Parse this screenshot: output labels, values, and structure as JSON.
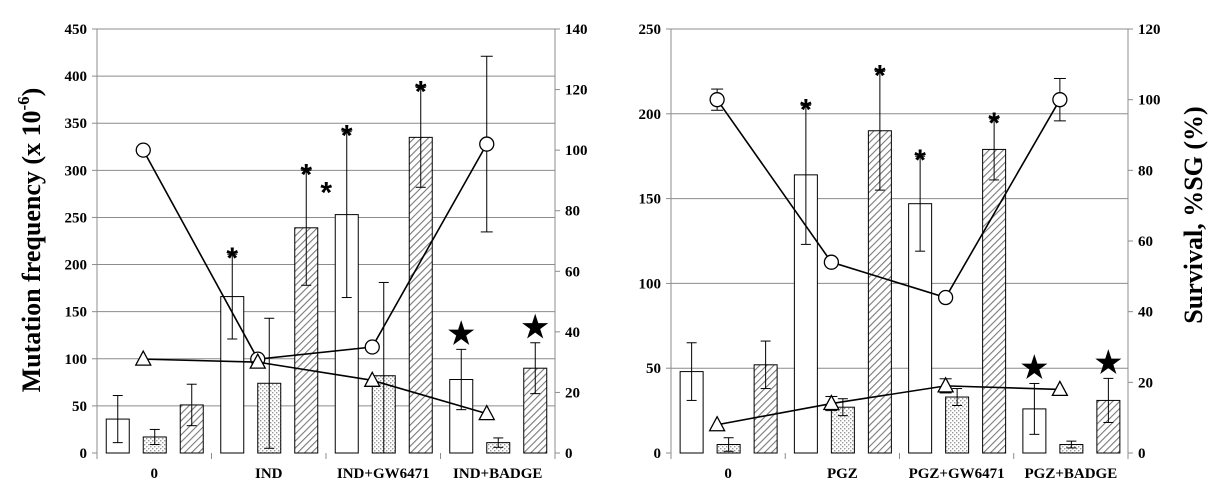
{
  "chart_data": [
    {
      "type": "bar",
      "ylabel": "Mutation frequency  (x 10",
      "ylabel_exp": "-6",
      "ylabel_close": ")",
      "ylim": [
        0,
        450
      ],
      "y_ticks": [
        "0",
        "50",
        "100",
        "150",
        "200",
        "250",
        "300",
        "350",
        "400",
        "450"
      ],
      "y2_ticks": [
        "0",
        "20",
        "40",
        "60",
        "80",
        "100",
        "120",
        "140"
      ],
      "y2lim": [
        0,
        140
      ],
      "categories": [
        "0",
        "IND",
        "IND+GW6471",
        "IND+BADGE"
      ],
      "bar_series": [
        {
          "pattern": "white",
          "values": [
            36,
            166,
            253,
            78
          ],
          "err": [
            25,
            45,
            88,
            32
          ]
        },
        {
          "pattern": "dotted",
          "values": [
            17,
            74,
            82,
            11
          ],
          "err": [
            8,
            69,
            99,
            5
          ]
        },
        {
          "pattern": "hatch",
          "values": [
            51,
            239,
            335,
            90
          ],
          "err": [
            22,
            61,
            53,
            27
          ]
        }
      ],
      "line_series": [
        {
          "marker": "circle",
          "values": [
            100,
            31,
            35,
            102
          ],
          "err": [
            0,
            0,
            0,
            29
          ]
        },
        {
          "marker": "triangle",
          "values": [
            31,
            30,
            24,
            13
          ],
          "err": [
            0,
            0,
            0,
            0
          ]
        }
      ],
      "annotations": [
        {
          "category": 1,
          "bar": 0,
          "symbol": "*"
        },
        {
          "category": 1,
          "bar": 2,
          "symbol": "*"
        },
        {
          "category": 1,
          "bar": 2,
          "symbol": "*",
          "second": true
        },
        {
          "category": 2,
          "bar": 0,
          "symbol": "*"
        },
        {
          "category": 2,
          "bar": 2,
          "symbol": "*"
        },
        {
          "category": 3,
          "bar": 0,
          "symbol": "★"
        },
        {
          "category": 3,
          "bar": 2,
          "symbol": "★"
        }
      ]
    },
    {
      "type": "bar",
      "y2label": "Survival,  %SG   (%)",
      "ylim": [
        0,
        250
      ],
      "y_ticks": [
        "0",
        "50",
        "100",
        "150",
        "200",
        "250"
      ],
      "y2_ticks": [
        "0",
        "20",
        "40",
        "60",
        "80",
        "100",
        "120"
      ],
      "y2lim": [
        0,
        120
      ],
      "categories": [
        "0",
        "PGZ",
        "PGZ+GW6471",
        "PGZ+BADGE"
      ],
      "bar_series": [
        {
          "pattern": "white",
          "values": [
            48,
            164,
            147,
            26
          ],
          "err": [
            17,
            41,
            28,
            15
          ]
        },
        {
          "pattern": "dotted",
          "values": [
            5,
            27,
            33,
            5
          ],
          "err": [
            4,
            5,
            5,
            2
          ]
        },
        {
          "pattern": "hatch",
          "values": [
            52,
            190,
            179,
            31
          ],
          "err": [
            14,
            35,
            18,
            13
          ]
        }
      ],
      "line_series": [
        {
          "marker": "circle",
          "values": [
            100,
            54,
            44,
            100
          ],
          "err": [
            3,
            0,
            0,
            6
          ]
        },
        {
          "marker": "triangle",
          "values": [
            8,
            14,
            19,
            18
          ],
          "err": [
            0,
            2,
            2,
            0
          ]
        }
      ],
      "annotations": [
        {
          "category": 1,
          "bar": 0,
          "symbol": "*"
        },
        {
          "category": 1,
          "bar": 2,
          "symbol": "*"
        },
        {
          "category": 2,
          "bar": 0,
          "symbol": "*"
        },
        {
          "category": 2,
          "bar": 2,
          "symbol": "*"
        },
        {
          "category": 3,
          "bar": 0,
          "symbol": "★"
        },
        {
          "category": 3,
          "bar": 2,
          "symbol": "★"
        }
      ]
    }
  ]
}
